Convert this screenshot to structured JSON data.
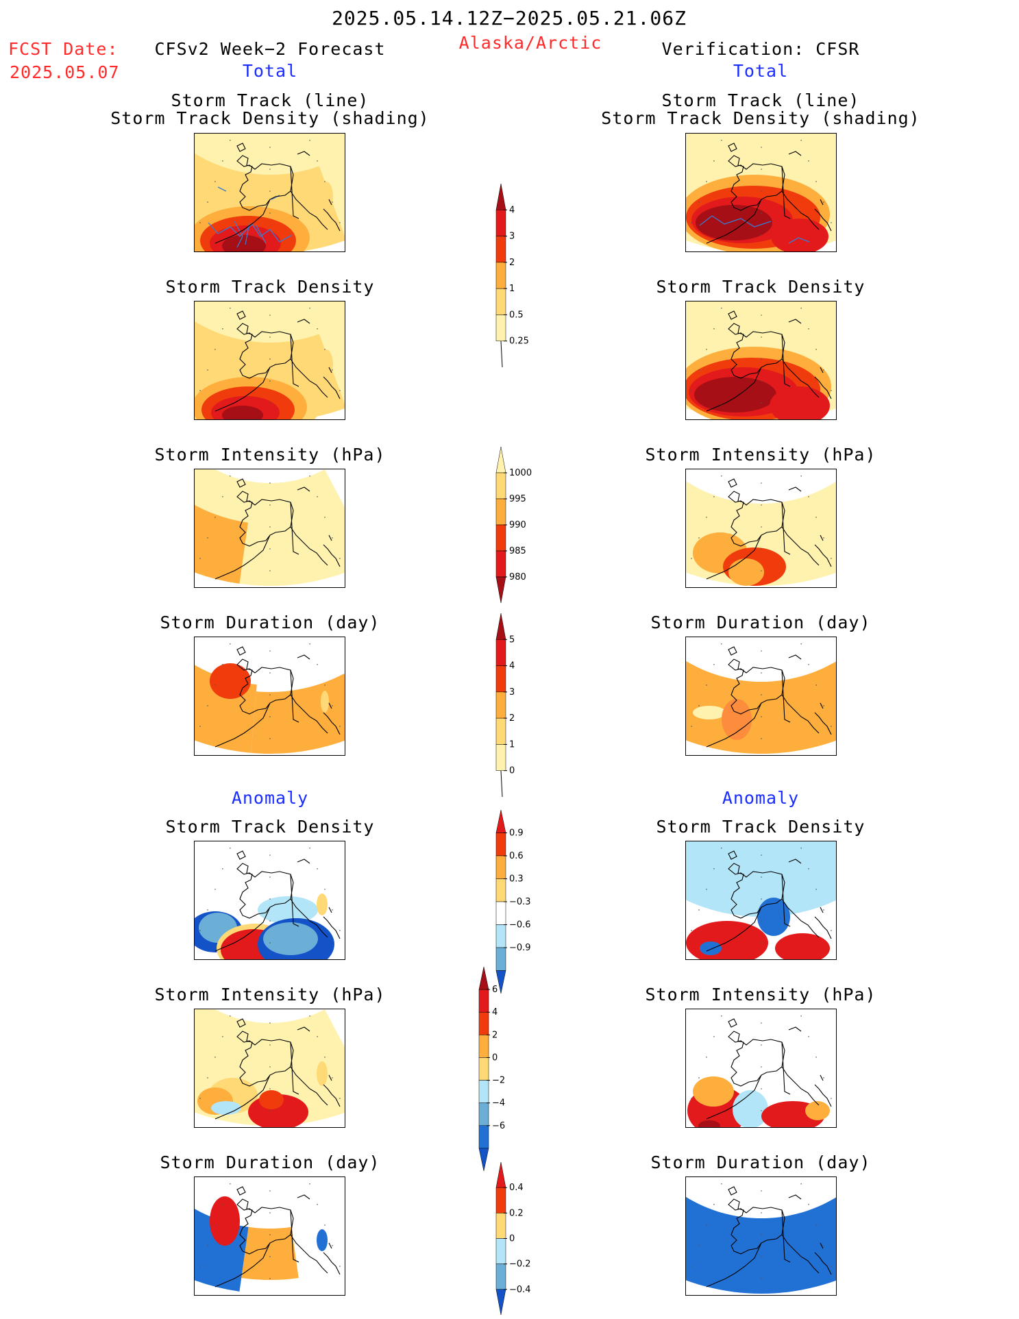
{
  "header": {
    "date_range": "2025.05.14.12Z−2025.05.21.06Z",
    "region": "Alaska/Arctic",
    "fcst_label": "FCST Date:",
    "fcst_date": "2025.05.07",
    "left_title": "CFSv2 Week−2 Forecast",
    "right_title": "Verification: CFSR",
    "total_label": "Total",
    "anomaly_label": "Anomaly"
  },
  "panel_titles": {
    "track_line": "Storm Track (line)",
    "track_shading": "Storm Track Density (shading)",
    "density": "Storm Track Density",
    "intensity": "Storm Intensity (hPa)",
    "duration": "Storm Duration (day)"
  },
  "colors": {
    "darkred": "#a50f15",
    "red": "#e31a1c",
    "orangered": "#f03b0c",
    "orange": "#fd8d3c",
    "lightorange": "#fdae3c",
    "yellow": "#fed976",
    "paleyellow": "#fff2ae",
    "lightblue": "#b3e5f8",
    "midblue": "#6baed6",
    "blue": "#2171d5",
    "darkblue": "#1452c8",
    "track": "#3b7bd4"
  },
  "chart_data": [
    {
      "type": "heatmap",
      "name": "colorbar-density",
      "levels": [
        "4",
        "3",
        "2",
        "1",
        "0.5",
        "0.25"
      ]
    },
    {
      "type": "heatmap",
      "name": "colorbar-intensity",
      "levels": [
        "1000",
        "995",
        "990",
        "985",
        "980"
      ]
    },
    {
      "type": "heatmap",
      "name": "colorbar-duration",
      "levels": [
        "5",
        "4",
        "3",
        "2",
        "1",
        "0"
      ]
    },
    {
      "type": "heatmap",
      "name": "colorbar-density-anomaly",
      "levels": [
        "0.9",
        "0.6",
        "0.3",
        "−0.3",
        "−0.6",
        "−0.9"
      ]
    },
    {
      "type": "heatmap",
      "name": "colorbar-intensity-anomaly",
      "levels": [
        "6",
        "4",
        "2",
        "0",
        "−2",
        "−4",
        "−6"
      ]
    },
    {
      "type": "heatmap",
      "name": "colorbar-duration-anomaly",
      "levels": [
        "0.4",
        "0.2",
        "0",
        "−0.2",
        "−0.4"
      ]
    }
  ]
}
